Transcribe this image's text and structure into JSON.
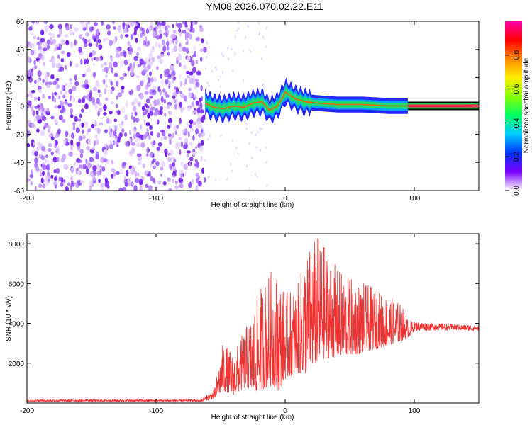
{
  "title": "YM08.2026.070.02.22.E11",
  "chart_data": [
    {
      "type": "heatmap",
      "name": "spectrogram",
      "xlabel": "Height of straight line (km)",
      "ylabel": "Frequency (Hz)",
      "xlim": [
        -200,
        150
      ],
      "ylim": [
        -60,
        60
      ],
      "xticks": [
        -200,
        -100,
        0,
        100
      ],
      "yticks": [
        -60,
        -40,
        -20,
        0,
        20,
        40,
        60
      ],
      "noise_region_km": [
        -200,
        -62
      ],
      "signal_region_km": [
        -62,
        95
      ],
      "steady_region_km": [
        95,
        150
      ],
      "dominant_frequency_track": {
        "x": [
          -62,
          -55,
          -48,
          -40,
          -32,
          -25,
          -18,
          -12,
          -6,
          -2,
          0,
          3,
          8,
          15,
          25,
          40,
          60,
          80,
          95,
          100,
          150
        ],
        "y": [
          2,
          -1,
          -2,
          0,
          -1,
          2,
          3,
          -3,
          0,
          6,
          10,
          8,
          5,
          3,
          2,
          1,
          1,
          0,
          0,
          0,
          0
        ]
      },
      "colorbar": {
        "label": "Normalized spectral amplitude",
        "range": [
          0.0,
          1.0
        ],
        "ticks": [
          "0.0",
          "0.2",
          "0.4",
          "0.6",
          "0.8"
        ],
        "tick_values": [
          0.0,
          0.2,
          0.4,
          0.6,
          0.8
        ],
        "colors": [
          "#ffffff",
          "#7b00ff",
          "#0033ff",
          "#00ccff",
          "#00ff66",
          "#88ff00",
          "#ffee00",
          "#ff8800",
          "#ff0000",
          "#ff00aa"
        ]
      }
    },
    {
      "type": "line",
      "name": "snr",
      "xlabel": "Height of straight line (km)",
      "ylabel": "SNR (10 * v/v)",
      "xlim": [
        -200,
        150
      ],
      "ylim": [
        0,
        8500
      ],
      "xticks": [
        -200,
        -100,
        0,
        100
      ],
      "yticks": [
        2000,
        4000,
        6000,
        8000
      ],
      "color": "#ee3333",
      "envelope": {
        "x": [
          -200,
          -65,
          -55,
          -48,
          -40,
          -30,
          -25,
          -20,
          -10,
          -5,
          0,
          10,
          15,
          20,
          25,
          30,
          40,
          50,
          60,
          70,
          80,
          90,
          95,
          100,
          120,
          150
        ],
        "lower": [
          60,
          60,
          200,
          600,
          400,
          800,
          500,
          600,
          900,
          600,
          1200,
          1500,
          1400,
          1800,
          2000,
          2200,
          2300,
          2400,
          2500,
          2700,
          2900,
          3100,
          3300,
          3600,
          3650,
          3600
        ],
        "upper": [
          180,
          180,
          700,
          3100,
          2500,
          3900,
          4600,
          5800,
          6800,
          6600,
          5500,
          6000,
          7500,
          8000,
          8500,
          8000,
          6800,
          6300,
          6100,
          5700,
          5400,
          5000,
          4200,
          4100,
          4000,
          3900
        ]
      }
    }
  ]
}
